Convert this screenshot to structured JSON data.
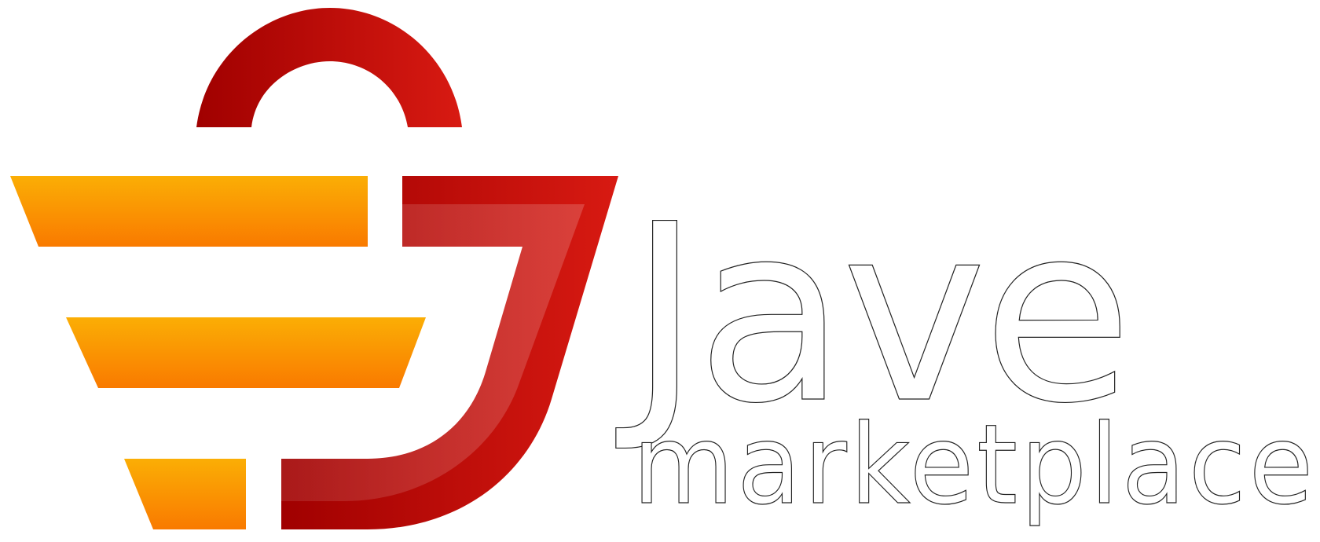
{
  "logo": {
    "brand_name": "Jave",
    "tagline": "marketplace",
    "icon": "shopping-basket-icon",
    "colors": {
      "orange_top": "#FBAE05",
      "orange_bottom": "#F97A00",
      "red_dark": "#A00000",
      "red_light": "#D81A12",
      "background": "#FFFFFF",
      "text_fill": "#FFFFFF",
      "text_outline": "#222222"
    }
  }
}
